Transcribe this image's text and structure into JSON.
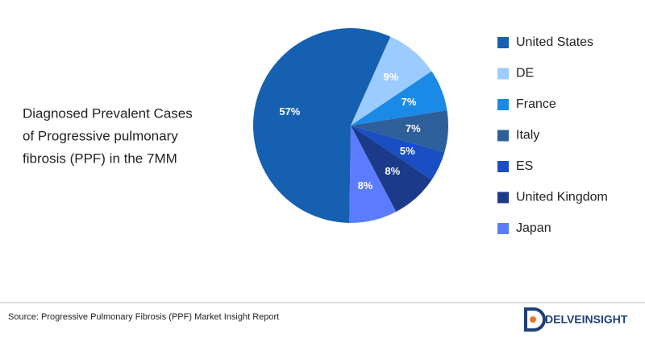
{
  "chart_data": {
    "type": "pie",
    "title": [
      "Diagnosed Prevalent Cases",
      "of Progressive pulmonary",
      "fibrosis (PPF) in the 7MM"
    ],
    "categories": [
      "United States",
      "DE",
      "France",
      "Italy",
      "ES",
      "United Kingdom",
      "Japan"
    ],
    "values": [
      57,
      9,
      7,
      7,
      5,
      8,
      8
    ],
    "value_labels": [
      "57%",
      "9%",
      "7%",
      "7%",
      "5%",
      "8%",
      "8%"
    ],
    "colors": [
      "#1560b0",
      "#9ccbff",
      "#1a8ae6",
      "#2d5f9a",
      "#1a4fc4",
      "#1c3a8a",
      "#5b7cff"
    ],
    "legend": "right"
  },
  "footer": {
    "source": "Source: Progressive Pulmonary Fibrosis (PPF) Market Insight Report",
    "logo": "DELVEINSIGHT"
  }
}
